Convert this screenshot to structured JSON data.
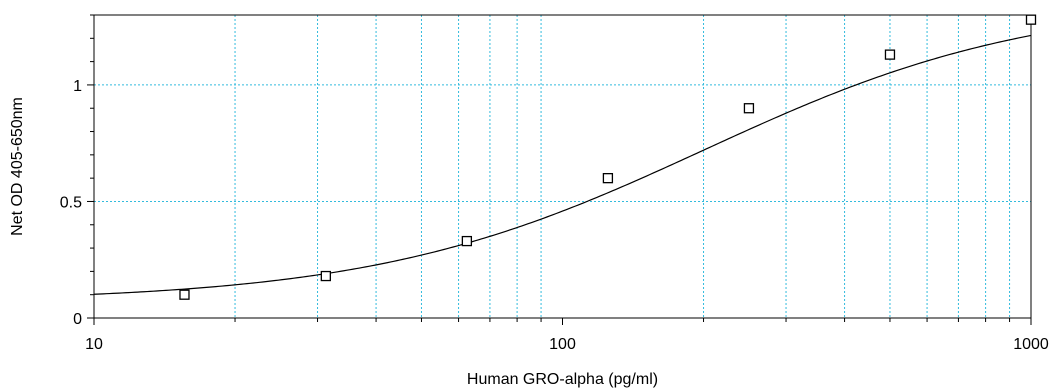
{
  "chart_data": {
    "type": "scatter",
    "title": "",
    "xlabel": "Human GRO-alpha (pg/ml)",
    "ylabel": "Net OD 405-650nm",
    "x_scale": "log",
    "xlim": [
      10,
      1000
    ],
    "ylim": [
      0,
      1.3
    ],
    "x_ticks": [
      10,
      100,
      1000
    ],
    "x_tick_labels": [
      "10",
      "100",
      "1000"
    ],
    "y_ticks": [
      0,
      0.5,
      1
    ],
    "y_tick_labels": [
      "0",
      "0.5",
      "1"
    ],
    "grid": true,
    "legend": "none",
    "colors": {
      "grid": "#33bbdd",
      "curve": "#000000",
      "marker": "#000000"
    },
    "series": [
      {
        "marker": "open-square",
        "x": [
          15.6,
          31.25,
          62.5,
          125,
          250,
          500,
          1000
        ],
        "y": [
          0.1,
          0.18,
          0.33,
          0.6,
          0.9,
          1.13,
          1.28
        ]
      }
    ],
    "fit_curve": {
      "type": "4PL",
      "bottom": 0.07,
      "top": 1.37,
      "ec50": 200,
      "hill": 1.23
    }
  }
}
